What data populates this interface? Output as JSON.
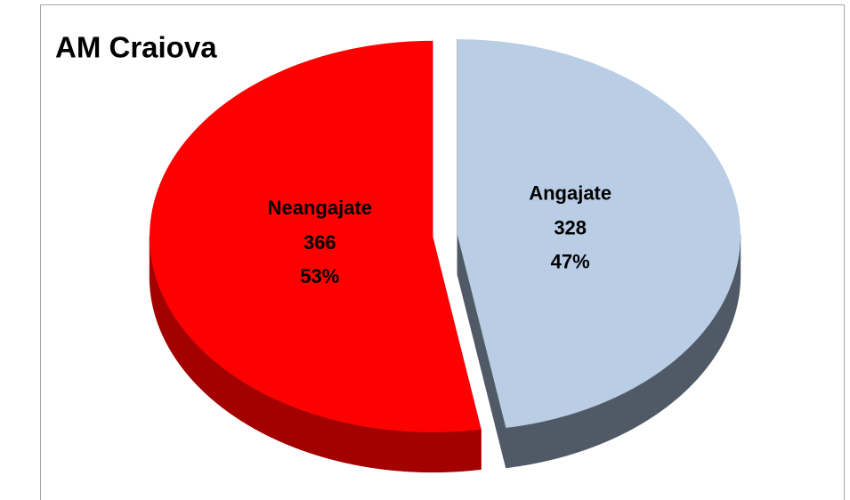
{
  "chart_data": {
    "type": "pie",
    "title": "AM Craiova",
    "categories": [
      "Angajate",
      "Neangajate"
    ],
    "values": [
      328,
      366
    ],
    "percentage_labels": [
      "47%",
      "53%"
    ],
    "colors": [
      "#b9cde5",
      "#ff0000"
    ],
    "side_colors": [
      "#4f5a66",
      "#a30000"
    ],
    "exploded": true
  }
}
